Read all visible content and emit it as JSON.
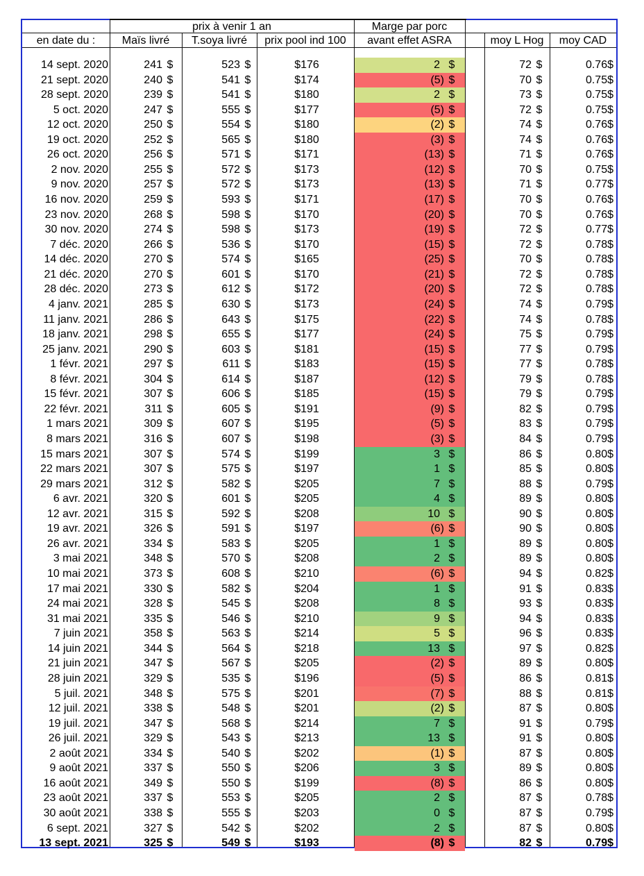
{
  "header": {
    "group_prix": "prix à venir 1 an",
    "marge_line1": "Marge par porc",
    "marge_line2": "avant effet ASRA",
    "date": "en date du :",
    "mais": "Maïs livré",
    "soya": "T.soya livré",
    "pool": "prix pool ind 100",
    "hog": "moy L Hog",
    "cad": "moy CAD",
    "currency": "$"
  },
  "rows": [
    [
      "14 sept. 2020",
      "241",
      "523",
      "$176",
      "2",
      "72",
      "0.76",
      "#d2e08a"
    ],
    [
      "21 sept. 2020",
      "240",
      "541",
      "$174",
      "(5)",
      "70",
      "0.75",
      "#f8696b"
    ],
    [
      "28 sept. 2020",
      "239",
      "541",
      "$180",
      "2",
      "73",
      "0.75",
      "#d2e08a"
    ],
    [
      "5 oct. 2020",
      "247",
      "555",
      "$177",
      "(5)",
      "72",
      "0.75",
      "#f8696b"
    ],
    [
      "12 oct. 2020",
      "250",
      "554",
      "$180",
      "(2)",
      "74",
      "0.76",
      "#fdd47f"
    ],
    [
      "19 oct. 2020",
      "252",
      "565",
      "$180",
      "(3)",
      "74",
      "0.76",
      "#f8696b"
    ],
    [
      "26 oct. 2020",
      "256",
      "571",
      "$171",
      "(13)",
      "71",
      "0.76",
      "#f8696b"
    ],
    [
      "2 nov. 2020",
      "255",
      "572",
      "$173",
      "(12)",
      "70",
      "0.75",
      "#f8696b"
    ],
    [
      "9 nov. 2020",
      "257",
      "572",
      "$173",
      "(13)",
      "71",
      "0.77",
      "#f8696b"
    ],
    [
      "16 nov. 2020",
      "259",
      "593",
      "$171",
      "(17)",
      "70",
      "0.76",
      "#f8696b"
    ],
    [
      "23 nov. 2020",
      "268",
      "598",
      "$170",
      "(20)",
      "70",
      "0.76",
      "#f8696b"
    ],
    [
      "30 nov. 2020",
      "274",
      "598",
      "$173",
      "(19)",
      "72",
      "0.77",
      "#f8696b"
    ],
    [
      "7 déc. 2020",
      "266",
      "536",
      "$170",
      "(15)",
      "72",
      "0.78",
      "#f8696b"
    ],
    [
      "14 déc. 2020",
      "270",
      "574",
      "$165",
      "(25)",
      "70",
      "0.78",
      "#f8696b"
    ],
    [
      "21 déc. 2020",
      "270",
      "601",
      "$170",
      "(21)",
      "72",
      "0.78",
      "#f8696b"
    ],
    [
      "28 déc. 2020",
      "273",
      "612",
      "$172",
      "(20)",
      "72",
      "0.78",
      "#f8696b"
    ],
    [
      "4 janv. 2021",
      "285",
      "630",
      "$173",
      "(24)",
      "74",
      "0.79",
      "#f8696b"
    ],
    [
      "11 janv. 2021",
      "286",
      "643",
      "$175",
      "(22)",
      "74",
      "0.78",
      "#f8696b"
    ],
    [
      "18 janv. 2021",
      "298",
      "655",
      "$177",
      "(24)",
      "75",
      "0.79",
      "#f8696b"
    ],
    [
      "25 janv. 2021",
      "290",
      "603",
      "$181",
      "(15)",
      "77",
      "0.79",
      "#f8696b"
    ],
    [
      "1 févr. 2021",
      "297",
      "611",
      "$183",
      "(15)",
      "77",
      "0.78",
      "#f8696b"
    ],
    [
      "8 févr. 2021",
      "304",
      "614",
      "$187",
      "(12)",
      "79",
      "0.78",
      "#f8696b"
    ],
    [
      "15 févr. 2021",
      "307",
      "606",
      "$185",
      "(15)",
      "79",
      "0.79",
      "#f8696b"
    ],
    [
      "22 févr. 2021",
      "311",
      "605",
      "$191",
      "(9)",
      "82",
      "0.79",
      "#f8696b"
    ],
    [
      "1 mars 2021",
      "309",
      "607",
      "$195",
      "(5)",
      "83",
      "0.79",
      "#f8696b"
    ],
    [
      "8 mars 2021",
      "316",
      "607",
      "$198",
      "(3)",
      "84",
      "0.79",
      "#f8696b"
    ],
    [
      "15 mars 2021",
      "307",
      "574",
      "$199",
      "3",
      "86",
      "0.80",
      "#63be7b"
    ],
    [
      "22 mars 2021",
      "307",
      "575",
      "$197",
      "1",
      "85",
      "0.80",
      "#63be7b"
    ],
    [
      "29 mars 2021",
      "312",
      "582",
      "$205",
      "7",
      "88",
      "0.79",
      "#63be7b"
    ],
    [
      "6 avr. 2021",
      "320",
      "601",
      "$205",
      "4",
      "89",
      "0.80",
      "#63be7b"
    ],
    [
      "12 avr. 2021",
      "315",
      "592",
      "$208",
      "10",
      "90",
      "0.80",
      "#8fcc7c"
    ],
    [
      "19 avr. 2021",
      "326",
      "591",
      "$197",
      "(6)",
      "90",
      "0.80",
      "#fa8370"
    ],
    [
      "26 avr. 2021",
      "334",
      "583",
      "$205",
      "1",
      "89",
      "0.80",
      "#63be7b"
    ],
    [
      "3 mai 2021",
      "348",
      "570",
      "$208",
      "2",
      "89",
      "0.80",
      "#63be7b"
    ],
    [
      "10 mai 2021",
      "373",
      "608",
      "$210",
      "(6)",
      "94",
      "0.82",
      "#fa8370"
    ],
    [
      "17 mai 2021",
      "330",
      "582",
      "$204",
      "1",
      "91",
      "0.83",
      "#63be7b"
    ],
    [
      "24 mai 2021",
      "328",
      "545",
      "$208",
      "8",
      "93",
      "0.83",
      "#63be7b"
    ],
    [
      "31 mai 2021",
      "335",
      "546",
      "$210",
      "9",
      "94",
      "0.83",
      "#a2d27f"
    ],
    [
      "7 juin 2021",
      "358",
      "563",
      "$214",
      "5",
      "96",
      "0.83",
      "#cfde82"
    ],
    [
      "14 juin 2021",
      "344",
      "564",
      "$218",
      "13",
      "97",
      "0.82",
      "#63be7b"
    ],
    [
      "21 juin 2021",
      "347",
      "567",
      "$205",
      "(2)",
      "89",
      "0.80",
      "#f8696b"
    ],
    [
      "28 juin 2021",
      "329",
      "535",
      "$196",
      "(5)",
      "86",
      "0.81",
      "#f8696b"
    ],
    [
      "5 juil. 2021",
      "348",
      "575",
      "$201",
      "(7)",
      "88",
      "0.81",
      "#f9736c"
    ],
    [
      "12 juil. 2021",
      "338",
      "548",
      "$201",
      "(2)",
      "87",
      "0.80",
      "#c5da80"
    ],
    [
      "19 juil. 2021",
      "347",
      "568",
      "$214",
      "7",
      "91",
      "0.79",
      "#63be7b"
    ],
    [
      "26 juil. 2021",
      "329",
      "543",
      "$213",
      "13",
      "91",
      "0.80",
      "#63be7b"
    ],
    [
      "2 août 2021",
      "334",
      "540",
      "$202",
      "(1)",
      "87",
      "0.80",
      "#fcc57c"
    ],
    [
      "9 août 2021",
      "337",
      "550",
      "$206",
      "3",
      "89",
      "0.80",
      "#63be7b"
    ],
    [
      "16 août 2021",
      "349",
      "550",
      "$199",
      "(8)",
      "86",
      "0.80",
      "#f8696b"
    ],
    [
      "23 août 2021",
      "337",
      "553",
      "$205",
      "2",
      "87",
      "0.78",
      "#63be7b"
    ],
    [
      "30 août 2021",
      "338",
      "555",
      "$203",
      "0",
      "87",
      "0.79",
      "#63be7b"
    ],
    [
      "6 sept. 2021",
      "327",
      "542",
      "$202",
      "2",
      "87",
      "0.80",
      "#63be7b"
    ],
    [
      "13 sept. 2021",
      "325",
      "549",
      "$193",
      "(8)",
      "82",
      "0.79",
      "#f8696b"
    ]
  ]
}
